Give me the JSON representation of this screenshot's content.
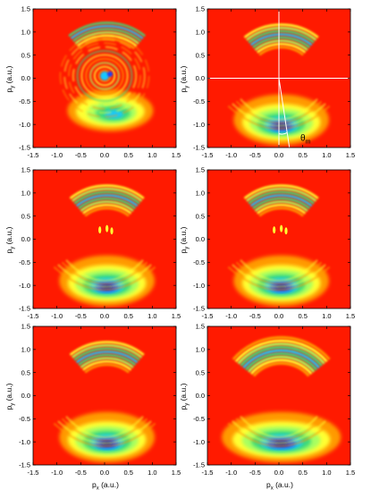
{
  "figure": {
    "panels": [
      {
        "id": "a",
        "row": 0,
        "col": 0,
        "show_ylabel": true,
        "show_xlabel": false,
        "pattern": "rings_center",
        "annotation": null
      },
      {
        "id": "b",
        "row": 0,
        "col": 1,
        "show_ylabel": true,
        "show_xlabel": false,
        "pattern": "arcs",
        "annotation": "theta"
      },
      {
        "id": "c",
        "row": 1,
        "col": 0,
        "show_ylabel": true,
        "show_xlabel": false,
        "pattern": "arcs_dots",
        "annotation": null
      },
      {
        "id": "d",
        "row": 1,
        "col": 1,
        "show_ylabel": true,
        "show_xlabel": false,
        "pattern": "arcs_dots",
        "annotation": null
      },
      {
        "id": "e",
        "row": 2,
        "col": 0,
        "show_ylabel": true,
        "show_xlabel": true,
        "pattern": "arcs",
        "annotation": null
      },
      {
        "id": "f",
        "row": 2,
        "col": 1,
        "show_ylabel": true,
        "show_xlabel": true,
        "pattern": "arcs_wide",
        "annotation": null
      }
    ],
    "axis": {
      "range": [
        -1.5,
        1.5
      ],
      "ticks": [
        -1.5,
        -1.0,
        -0.5,
        0.0,
        0.5,
        1.0,
        1.5
      ],
      "tick_labels": [
        "-1.5",
        "-1.0",
        "-0.5",
        "0.0",
        "0.5",
        "1.0",
        "1.5"
      ],
      "xlabel_main": "p",
      "xlabel_sub": "x",
      "xlabel_unit": " (a.u.)",
      "ylabel_main": "p",
      "ylabel_sub": "y",
      "ylabel_unit": " (a.u.)"
    },
    "annotation_label": "θ",
    "annotation_sub": "m",
    "colors": {
      "background": "#ff1a00",
      "orange": "#ff9a00",
      "yellow": "#ffff33",
      "light_green": "#a8ff60",
      "green": "#3cd97a",
      "cyan": "#12c8ff",
      "blue": "#1240ff",
      "dark_blue": "#0b0b8f",
      "guide_line": "#ffffff"
    }
  }
}
